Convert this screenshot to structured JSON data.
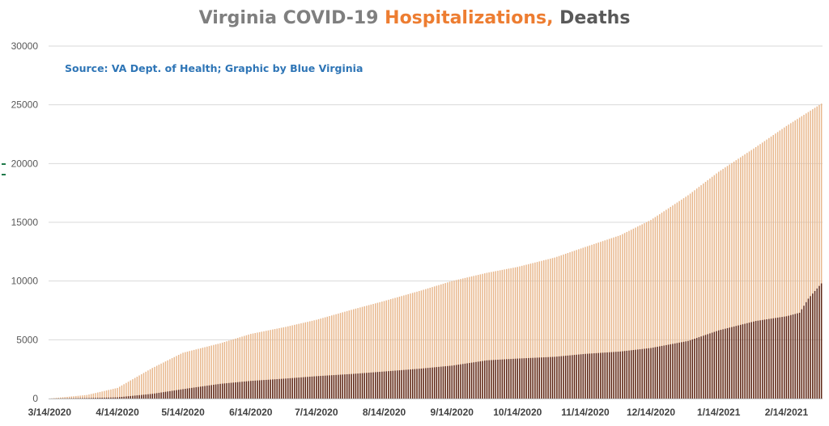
{
  "chart_data": {
    "type": "bar",
    "title": {
      "part1": "Virginia COVID-19 ",
      "part2": "Hospitalizations,",
      "part3": " Deaths"
    },
    "source_note": "Source: VA Dept. of Health; Graphic by Blue Virginia",
    "x_tick_labels": [
      "3/14/2020",
      "4/14/2020",
      "5/14/2020",
      "6/14/2020",
      "7/14/2020",
      "8/14/2020",
      "9/14/2020",
      "10/14/2020",
      "11/14/2020",
      "12/14/2020",
      "1/14/2021",
      "2/14/2021"
    ],
    "x_range": [
      "3/14/2020",
      "3/2/2021"
    ],
    "ylim": [
      0,
      30000
    ],
    "y_ticks": [
      0,
      5000,
      10000,
      15000,
      20000,
      25000,
      30000
    ],
    "grid": true,
    "legend": "none",
    "series": [
      {
        "color": "#e8b78c",
        "points": [
          [
            "3/14/2020",
            0
          ],
          [
            "3/31/2020",
            300
          ],
          [
            "4/14/2020",
            900
          ],
          [
            "4/30/2020",
            2600
          ],
          [
            "5/14/2020",
            3900
          ],
          [
            "5/31/2020",
            4700
          ],
          [
            "6/14/2020",
            5500
          ],
          [
            "6/30/2020",
            6100
          ],
          [
            "7/14/2020",
            6700
          ],
          [
            "7/31/2020",
            7600
          ],
          [
            "8/14/2020",
            8300
          ],
          [
            "8/31/2020",
            9200
          ],
          [
            "9/14/2020",
            10000
          ],
          [
            "9/30/2020",
            10700
          ],
          [
            "10/14/2020",
            11200
          ],
          [
            "10/31/2020",
            12000
          ],
          [
            "11/14/2020",
            12900
          ],
          [
            "11/30/2020",
            13900
          ],
          [
            "12/14/2020",
            15200
          ],
          [
            "12/31/2020",
            17300
          ],
          [
            "1/14/2021",
            19300
          ],
          [
            "1/31/2021",
            21400
          ],
          [
            "2/14/2021",
            23200
          ],
          [
            "3/2/2021",
            25100
          ]
        ]
      },
      {
        "color": "#5b2414",
        "points": [
          [
            "3/14/2020",
            0
          ],
          [
            "3/31/2020",
            40
          ],
          [
            "4/14/2020",
            100
          ],
          [
            "4/30/2020",
            400
          ],
          [
            "5/14/2020",
            800
          ],
          [
            "5/31/2020",
            1250
          ],
          [
            "6/14/2020",
            1500
          ],
          [
            "6/30/2020",
            1700
          ],
          [
            "7/14/2020",
            1900
          ],
          [
            "7/31/2020",
            2100
          ],
          [
            "8/14/2020",
            2300
          ],
          [
            "8/31/2020",
            2550
          ],
          [
            "9/14/2020",
            2800
          ],
          [
            "9/30/2020",
            3250
          ],
          [
            "10/14/2020",
            3400
          ],
          [
            "10/31/2020",
            3550
          ],
          [
            "11/14/2020",
            3800
          ],
          [
            "11/30/2020",
            4000
          ],
          [
            "12/14/2020",
            4300
          ],
          [
            "12/31/2020",
            4900
          ],
          [
            "1/14/2021",
            5800
          ],
          [
            "1/31/2021",
            6600
          ],
          [
            "2/14/2021",
            7000
          ],
          [
            "2/20/2021",
            7300
          ],
          [
            "2/24/2021",
            8500
          ],
          [
            "3/2/2021",
            9800
          ]
        ]
      }
    ]
  }
}
